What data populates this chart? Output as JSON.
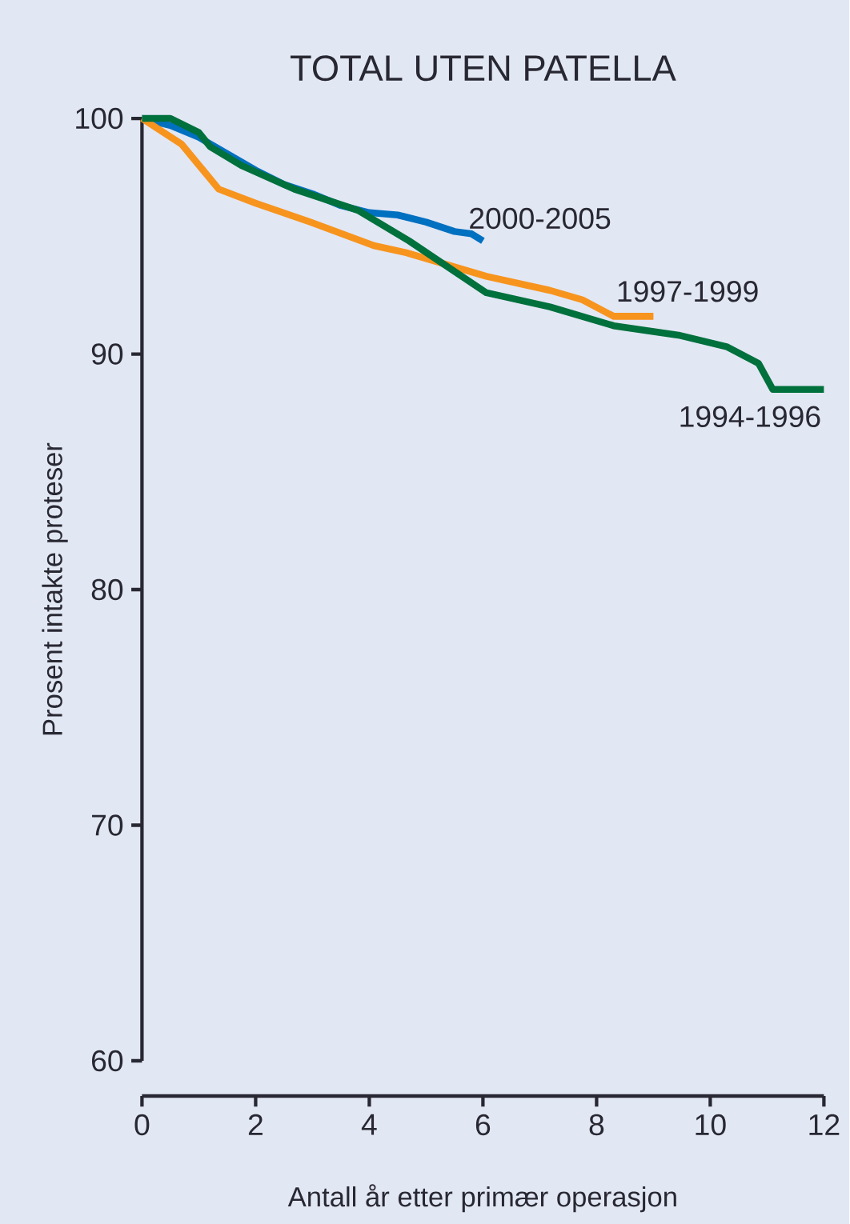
{
  "chart_data": {
    "type": "line",
    "title": "TOTAL UTEN PATELLA",
    "xlabel": "Antall år etter primær operasjon",
    "ylabel": "Prosent intakte proteser",
    "xlim": [
      0,
      12
    ],
    "xticks": [
      0,
      2,
      4,
      6,
      8,
      10,
      12
    ],
    "ylim": [
      60,
      100
    ],
    "yticks": [
      60,
      70,
      80,
      90,
      100
    ],
    "marker": "none",
    "line_style": "solid",
    "series": [
      {
        "name": "2000-2005",
        "color": "#0070c0",
        "x": [
          0,
          0.5,
          1,
          1.5,
          2,
          2.5,
          3,
          3.5,
          4,
          4.5,
          5,
          5.5,
          5.8,
          6
        ],
        "values": [
          100,
          99.7,
          99.2,
          98.5,
          97.8,
          97.2,
          96.8,
          96.3,
          96.0,
          95.9,
          95.6,
          95.2,
          95.1,
          94.8
        ]
      },
      {
        "name": "1997-1999",
        "color": "#f7941d",
        "x": [
          0,
          0.7,
          1.35,
          2,
          2.96,
          4.08,
          4.65,
          6.06,
          7.18,
          7.75,
          8.3,
          9.0
        ],
        "values": [
          100,
          98.9,
          97.0,
          96.4,
          95.6,
          94.6,
          94.3,
          93.3,
          92.7,
          92.3,
          91.6,
          91.6
        ]
      },
      {
        "name": "1994-1996",
        "color": "#00703c",
        "x": [
          0,
          0.5,
          1.0,
          1.2,
          1.75,
          2.68,
          3.8,
          4.7,
          6.06,
          7.18,
          8.3,
          9.44,
          10.3,
          10.85,
          11.1,
          12
        ],
        "values": [
          100,
          100,
          99.4,
          98.8,
          98.0,
          97.0,
          96.1,
          94.8,
          92.6,
          92.0,
          91.2,
          90.8,
          90.3,
          89.6,
          88.5,
          88.5
        ]
      }
    ]
  }
}
